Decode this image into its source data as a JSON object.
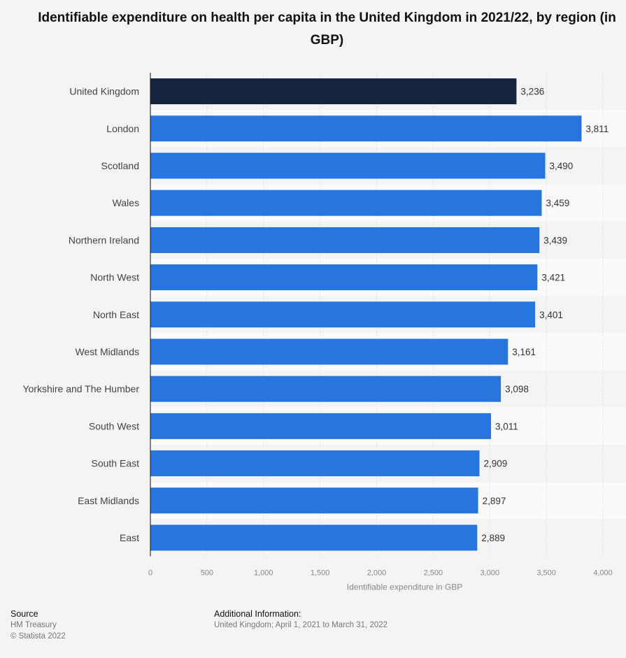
{
  "chart_data": {
    "type": "bar",
    "orientation": "horizontal",
    "title": "Identifiable expenditure on health per capita in the United Kingdom in 2021/22, by region (in GBP)",
    "xlabel": "Identifiable expenditure in GBP",
    "categories": [
      "United Kingdom",
      "London",
      "Scotland",
      "Wales",
      "Northern Ireland",
      "North West",
      "North East",
      "West Midlands",
      "Yorkshire and The Humber",
      "South West",
      "South East",
      "East Midlands",
      "East"
    ],
    "values": [
      3236,
      3811,
      3490,
      3459,
      3439,
      3421,
      3401,
      3161,
      3098,
      3011,
      2909,
      2897,
      2889
    ],
    "value_labels": [
      "3,236",
      "3,811",
      "3,490",
      "3,459",
      "3,439",
      "3,421",
      "3,401",
      "3,161",
      "3,098",
      "3,011",
      "2,909",
      "2,897",
      "2,889"
    ],
    "xlim": [
      0,
      4000
    ],
    "ticks": [
      0,
      500,
      1000,
      1500,
      2000,
      2500,
      3000,
      3500,
      4000
    ],
    "tick_labels": [
      "0",
      "500",
      "1,000",
      "1,500",
      "2,000",
      "2,500",
      "3,000",
      "3,500",
      "4,000"
    ],
    "highlight_color": "#14253d",
    "bar_color": "#2775de",
    "grid": true
  },
  "footer": {
    "source_heading": "Source",
    "source_lines": [
      "HM Treasury",
      "© Statista 2022"
    ],
    "info_heading": "Additional Information:",
    "info_text": "United Kingdom; April 1, 2021 to March 31, 2022"
  }
}
